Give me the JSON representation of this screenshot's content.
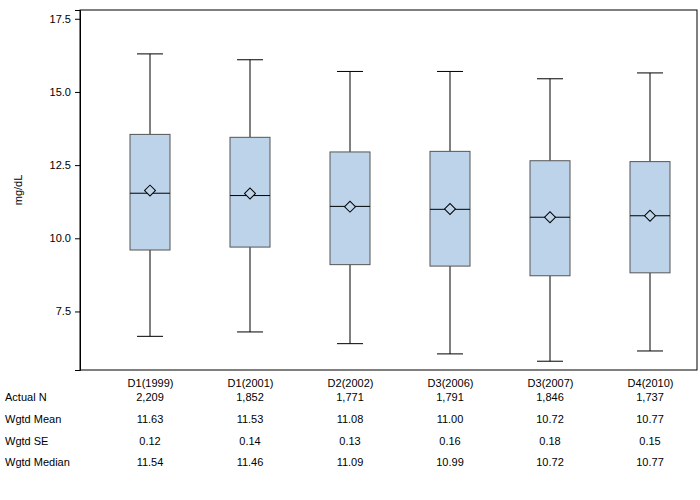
{
  "chart_data": {
    "type": "box",
    "y_label": "mg/dL",
    "categories": [
      "D1(1999)",
      "D1(2001)",
      "D2(2002)",
      "D3(2006)",
      "D3(2007)",
      "D4(2010)"
    ],
    "whisker_low": [
      6.65,
      6.8,
      6.4,
      6.05,
      5.8,
      6.15
    ],
    "q1": [
      9.6,
      9.7,
      9.1,
      9.05,
      8.72,
      8.82
    ],
    "median": [
      11.54,
      11.46,
      11.09,
      10.99,
      10.72,
      10.77
    ],
    "q3": [
      13.55,
      13.45,
      12.95,
      12.97,
      12.65,
      12.62
    ],
    "whisker_high": [
      16.3,
      16.1,
      15.7,
      15.7,
      15.45,
      15.65
    ],
    "mean": [
      11.63,
      11.53,
      11.08,
      11.0,
      10.72,
      10.77
    ],
    "color": "#bdd3ea",
    "ylim": [
      5.5,
      17.8
    ],
    "yticks": [
      7.5,
      {
        "value": 10,
        "label": "10.0"
      },
      12.5,
      {
        "value": 15,
        "label": "15.0"
      },
      17.5
    ],
    "grid": false,
    "stats_table": {
      "rows": [
        {
          "label": "Actual N",
          "values": [
            "2,209",
            "1,852",
            "1,771",
            "1,791",
            "1,846",
            "1,737"
          ]
        },
        {
          "label": "Wgtd Mean",
          "values": [
            "11.63",
            "11.53",
            "11.08",
            "11.00",
            "10.72",
            "10.77"
          ]
        },
        {
          "label": "Wgtd SE",
          "values": [
            "0.12",
            "0.14",
            "0.13",
            "0.16",
            "0.18",
            "0.15"
          ]
        },
        {
          "label": "Wgtd Median",
          "values": [
            "11.54",
            "11.46",
            "11.09",
            "10.99",
            "10.72",
            "10.77"
          ]
        }
      ]
    }
  }
}
